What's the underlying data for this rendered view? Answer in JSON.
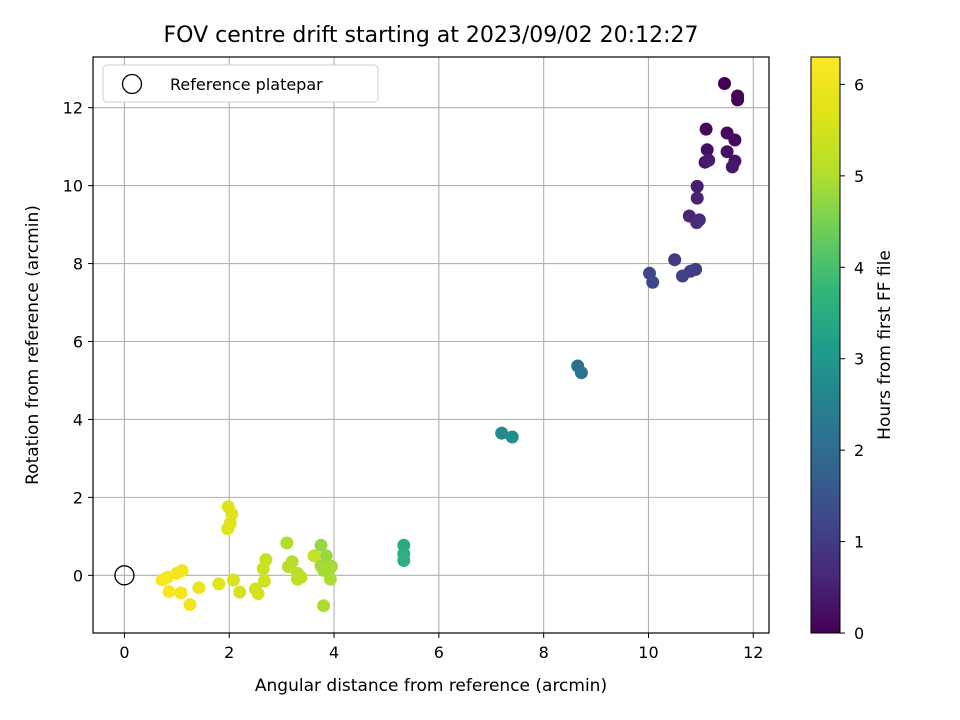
{
  "chart_data": {
    "type": "scatter",
    "title": "FOV centre drift starting at 2023/09/02 20:12:27",
    "xlabel": "Angular distance from reference (arcmin)",
    "ylabel": "Rotation from reference (arcmin)",
    "xlim": [
      -0.6,
      12.3
    ],
    "ylim": [
      -1.48,
      13.3
    ],
    "xticks": [
      0,
      2,
      4,
      6,
      8,
      10,
      12
    ],
    "yticks": [
      0,
      2,
      4,
      6,
      8,
      10,
      12
    ],
    "grid": true,
    "legend": {
      "position": "top-left",
      "entries": [
        "Reference platepar"
      ]
    },
    "reference_point": {
      "x": 0,
      "y": 0,
      "label": "Reference platepar"
    },
    "colorbar": {
      "label": "Hours from first FF file",
      "colormap": "viridis",
      "range": [
        0,
        6.3
      ],
      "ticks": [
        0,
        1,
        2,
        3,
        4,
        5,
        6
      ]
    },
    "points": [
      {
        "x": 11.45,
        "y": 12.62,
        "t": 0.0
      },
      {
        "x": 11.7,
        "y": 12.3,
        "t": 0.03
      },
      {
        "x": 11.7,
        "y": 12.2,
        "t": 0.06
      },
      {
        "x": 11.1,
        "y": 11.45,
        "t": 0.12
      },
      {
        "x": 11.5,
        "y": 11.35,
        "t": 0.15
      },
      {
        "x": 11.65,
        "y": 11.17,
        "t": 0.18
      },
      {
        "x": 11.12,
        "y": 10.92,
        "t": 0.22
      },
      {
        "x": 11.5,
        "y": 10.87,
        "t": 0.26
      },
      {
        "x": 11.08,
        "y": 10.6,
        "t": 0.3
      },
      {
        "x": 11.65,
        "y": 10.63,
        "t": 0.33
      },
      {
        "x": 11.6,
        "y": 10.48,
        "t": 0.37
      },
      {
        "x": 11.15,
        "y": 10.65,
        "t": 0.4
      },
      {
        "x": 10.93,
        "y": 9.98,
        "t": 0.5
      },
      {
        "x": 10.93,
        "y": 9.68,
        "t": 0.55
      },
      {
        "x": 10.78,
        "y": 9.22,
        "t": 0.62
      },
      {
        "x": 10.97,
        "y": 9.12,
        "t": 0.68
      },
      {
        "x": 10.92,
        "y": 9.05,
        "t": 0.72
      },
      {
        "x": 10.5,
        "y": 8.1,
        "t": 0.95
      },
      {
        "x": 10.9,
        "y": 7.85,
        "t": 1.0
      },
      {
        "x": 10.8,
        "y": 7.8,
        "t": 1.05
      },
      {
        "x": 10.65,
        "y": 7.68,
        "t": 1.1
      },
      {
        "x": 10.02,
        "y": 7.75,
        "t": 1.2
      },
      {
        "x": 10.08,
        "y": 7.52,
        "t": 1.25
      },
      {
        "x": 8.65,
        "y": 5.37,
        "t": 2.05
      },
      {
        "x": 8.72,
        "y": 5.2,
        "t": 2.1
      },
      {
        "x": 7.2,
        "y": 3.65,
        "t": 2.7
      },
      {
        "x": 7.4,
        "y": 3.55,
        "t": 2.75
      },
      {
        "x": 5.33,
        "y": 0.77,
        "t": 3.5
      },
      {
        "x": 5.33,
        "y": 0.55,
        "t": 3.55
      },
      {
        "x": 5.33,
        "y": 0.38,
        "t": 3.6
      },
      {
        "x": 3.75,
        "y": 0.77,
        "t": 4.75
      },
      {
        "x": 3.85,
        "y": 0.5,
        "t": 4.8
      },
      {
        "x": 3.75,
        "y": 0.25,
        "t": 4.85
      },
      {
        "x": 3.95,
        "y": 0.23,
        "t": 4.85
      },
      {
        "x": 3.8,
        "y": 0.13,
        "t": 4.9
      },
      {
        "x": 3.9,
        "y": 0.13,
        "t": 4.92
      },
      {
        "x": 3.93,
        "y": -0.1,
        "t": 4.95
      },
      {
        "x": 3.8,
        "y": -0.78,
        "t": 4.97
      },
      {
        "x": 3.62,
        "y": 0.5,
        "t": 5.3
      },
      {
        "x": 3.1,
        "y": 0.83,
        "t": 5.0
      },
      {
        "x": 3.2,
        "y": 0.35,
        "t": 5.05
      },
      {
        "x": 3.13,
        "y": 0.22,
        "t": 5.1
      },
      {
        "x": 3.3,
        "y": 0.05,
        "t": 5.1
      },
      {
        "x": 3.37,
        "y": -0.05,
        "t": 5.15
      },
      {
        "x": 3.3,
        "y": -0.1,
        "t": 5.15
      },
      {
        "x": 2.7,
        "y": 0.4,
        "t": 5.35
      },
      {
        "x": 2.65,
        "y": 0.17,
        "t": 5.4
      },
      {
        "x": 2.67,
        "y": -0.15,
        "t": 5.45
      },
      {
        "x": 2.5,
        "y": -0.35,
        "t": 5.48
      },
      {
        "x": 2.55,
        "y": -0.47,
        "t": 5.5
      },
      {
        "x": 2.2,
        "y": -0.43,
        "t": 5.55
      },
      {
        "x": 2.08,
        "y": -0.12,
        "t": 5.6
      },
      {
        "x": 1.98,
        "y": 1.76,
        "t": 5.7
      },
      {
        "x": 2.05,
        "y": 1.57,
        "t": 5.72
      },
      {
        "x": 2.02,
        "y": 1.33,
        "t": 5.75
      },
      {
        "x": 1.97,
        "y": 1.2,
        "t": 5.77
      },
      {
        "x": 1.8,
        "y": -0.22,
        "t": 5.8
      },
      {
        "x": 1.42,
        "y": -0.32,
        "t": 6.0
      },
      {
        "x": 1.25,
        "y": -0.75,
        "t": 6.05
      },
      {
        "x": 1.1,
        "y": 0.12,
        "t": 6.08
      },
      {
        "x": 1.0,
        "y": 0.05,
        "t": 6.1
      },
      {
        "x": 1.08,
        "y": -0.45,
        "t": 6.1
      },
      {
        "x": 0.85,
        "y": -0.42,
        "t": 6.15
      },
      {
        "x": 0.82,
        "y": -0.05,
        "t": 6.18
      },
      {
        "x": 0.72,
        "y": -0.12,
        "t": 6.2
      }
    ]
  }
}
